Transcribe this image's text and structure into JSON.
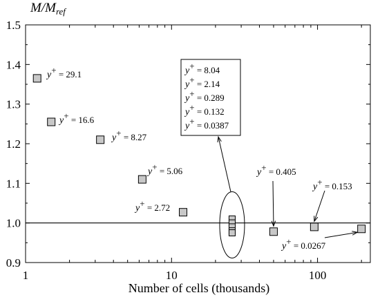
{
  "chart_data": {
    "type": "scatter",
    "title": "",
    "xlabel": "Number of cells (thousands)",
    "ylabel": "M/M_ref",
    "ylabel_main": "M/M",
    "ylabel_sub": "ref",
    "xscale": "log",
    "xlim": [
      1,
      230
    ],
    "ylim": [
      0.9,
      1.5
    ],
    "xticks": [
      1,
      10,
      100
    ],
    "yticks": [
      0.9,
      1.0,
      1.1,
      1.2,
      1.3,
      1.4,
      1.5
    ],
    "reference_line": 1.0,
    "grid": false,
    "marker_color": "#c8c8c8",
    "points": [
      {
        "x": 1.2,
        "y": 1.365,
        "label": "= 29.1"
      },
      {
        "x": 1.5,
        "y": 1.255,
        "label": "= 16.6"
      },
      {
        "x": 3.25,
        "y": 1.21,
        "label": "= 8.27"
      },
      {
        "x": 6.3,
        "y": 1.11,
        "label": "= 5.06"
      },
      {
        "x": 12,
        "y": 1.027,
        "label": "= 2.72"
      },
      {
        "x": 26,
        "y": 1.01,
        "label": "= 8.04"
      },
      {
        "x": 26,
        "y": 1.0,
        "label": "= 2.14"
      },
      {
        "x": 26,
        "y": 0.99,
        "label": "= 0.289"
      },
      {
        "x": 26,
        "y": 0.98,
        "label": "= 0.132"
      },
      {
        "x": 26,
        "y": 0.975,
        "label": "= 0.0387"
      },
      {
        "x": 50,
        "y": 0.978,
        "label": "= 0.405"
      },
      {
        "x": 95,
        "y": 0.99,
        "label": "= 0.153"
      },
      {
        "x": 200,
        "y": 0.985,
        "label": "= 0.0267"
      }
    ],
    "annotation_symbol": "y",
    "annotation_sup": "+"
  }
}
